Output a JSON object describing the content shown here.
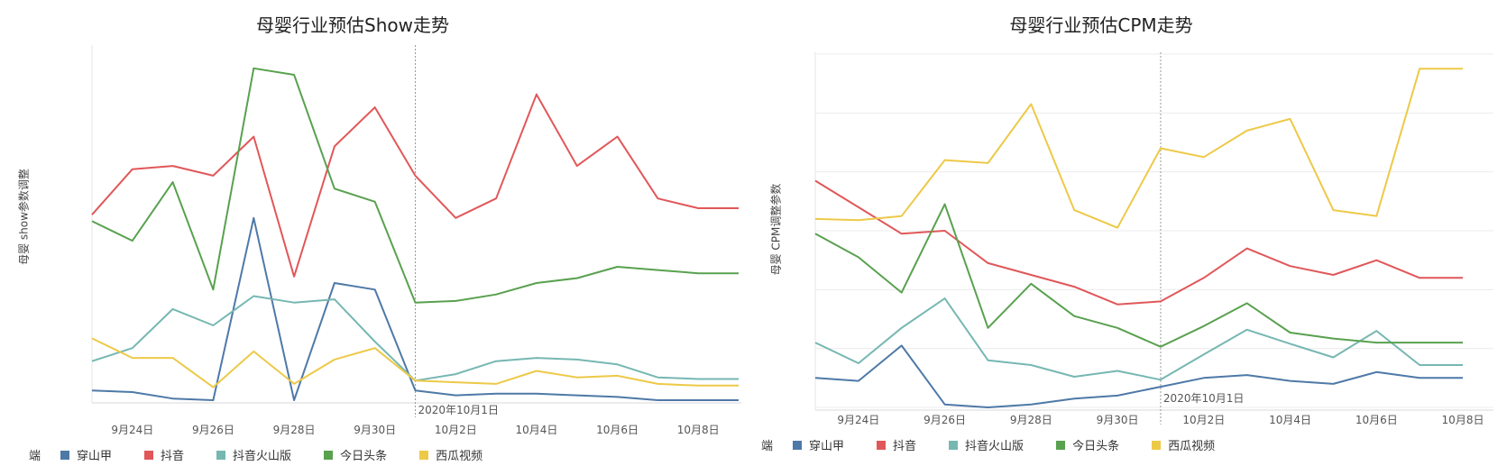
{
  "chart_data": [
    {
      "type": "line",
      "title": "母婴行业预估Show走势",
      "ylabel": "母婴 show参数调整",
      "x": [
        "9月23日",
        "9月24日",
        "9月25日",
        "9月26日",
        "9月27日",
        "9月28日",
        "9月29日",
        "9月30日",
        "10月1日",
        "10月2日",
        "10月3日",
        "10月4日",
        "10月5日",
        "10月6日",
        "10月7日",
        "10月8日",
        "10月9日"
      ],
      "tick_labels": [
        "9月24日",
        "9月26日",
        "9月28日",
        "9月30日",
        "10月2日",
        "10月4日",
        "10月6日",
        "10月8日"
      ],
      "ylim": [
        0,
        100
      ],
      "grid": true,
      "legend_position": "bottom",
      "annotation": "2020年10月1日",
      "series": [
        {
          "name": "穿山甲",
          "color": "#4e79a7",
          "values": [
            3,
            2.5,
            0.5,
            0,
            56,
            0,
            36,
            34,
            3,
            1.5,
            2,
            2,
            1.5,
            1,
            0,
            0,
            0
          ]
        },
        {
          "name": "抖音",
          "color": "#e15759",
          "values": [
            57,
            71,
            72,
            69,
            81,
            38,
            78,
            90,
            69,
            56,
            62,
            94,
            72,
            81,
            62,
            59,
            59
          ]
        },
        {
          "name": "抖音火山版",
          "color": "#76b7b2",
          "values": [
            12,
            16,
            28,
            23,
            32,
            30,
            31,
            18,
            6,
            8,
            12,
            13,
            12.5,
            11,
            7,
            6.5,
            6.5
          ]
        },
        {
          "name": "今日头条",
          "color": "#59a14f",
          "values": [
            55,
            49,
            67,
            34,
            102,
            100,
            65,
            61,
            30,
            30.5,
            32.5,
            36,
            37.5,
            41,
            40,
            39,
            39
          ]
        },
        {
          "name": "西瓜视频",
          "color": "#edc948",
          "values": [
            19,
            13,
            13,
            4,
            15,
            5,
            12.5,
            16,
            6,
            5.5,
            5,
            9,
            7,
            7.5,
            5,
            4.5,
            4.5
          ]
        }
      ]
    },
    {
      "type": "line",
      "title": "母婴行业预估CPM走势",
      "ylabel": "母婴 CPM调整参数",
      "x": [
        "9月23日",
        "9月24日",
        "9月25日",
        "9月26日",
        "9月27日",
        "9月28日",
        "9月29日",
        "9月30日",
        "10月1日",
        "10月2日",
        "10月3日",
        "10月4日",
        "10月5日",
        "10月6日",
        "10月7日",
        "10月8日"
      ],
      "tick_labels": [
        "9月24日",
        "9月26日",
        "9月28日",
        "9月30日",
        "10月2日",
        "10月4日",
        "10月6日",
        "10月8日"
      ],
      "ylim": [
        0,
        6
      ],
      "grid": true,
      "legend_position": "bottom",
      "annotation": "2020年10月1日",
      "series": [
        {
          "name": "穿山甲",
          "color": "#4e79a7",
          "values": [
            0.5,
            0.45,
            1.05,
            0.05,
            0,
            0.05,
            0.15,
            0.2,
            0.35,
            0.5,
            0.55,
            0.45,
            0.4,
            0.6,
            0.5,
            0.5
          ]
        },
        {
          "name": "抖音",
          "color": "#e15759",
          "values": [
            3.85,
            3.4,
            2.95,
            3.0,
            2.45,
            2.25,
            2.05,
            1.75,
            1.8,
            2.2,
            2.7,
            2.4,
            2.25,
            2.5,
            2.2,
            2.2
          ]
        },
        {
          "name": "抖音火山版",
          "color": "#76b7b2",
          "values": [
            1.1,
            0.75,
            1.35,
            1.85,
            0.8,
            0.72,
            0.52,
            0.62,
            0.47,
            0.9,
            1.32,
            1.08,
            0.85,
            1.3,
            0.72,
            0.72
          ]
        },
        {
          "name": "今日头条",
          "color": "#59a14f",
          "values": [
            2.95,
            2.55,
            1.95,
            3.45,
            1.35,
            2.1,
            1.55,
            1.35,
            1.03,
            1.38,
            1.77,
            1.27,
            1.17,
            1.1,
            1.1,
            1.1
          ]
        },
        {
          "name": "西瓜视频",
          "color": "#edc948",
          "values": [
            3.2,
            3.18,
            3.25,
            4.2,
            4.15,
            5.15,
            3.35,
            3.05,
            4.4,
            4.25,
            4.7,
            4.9,
            3.35,
            3.25,
            5.75,
            5.75
          ]
        }
      ]
    }
  ],
  "legend_title": "端"
}
